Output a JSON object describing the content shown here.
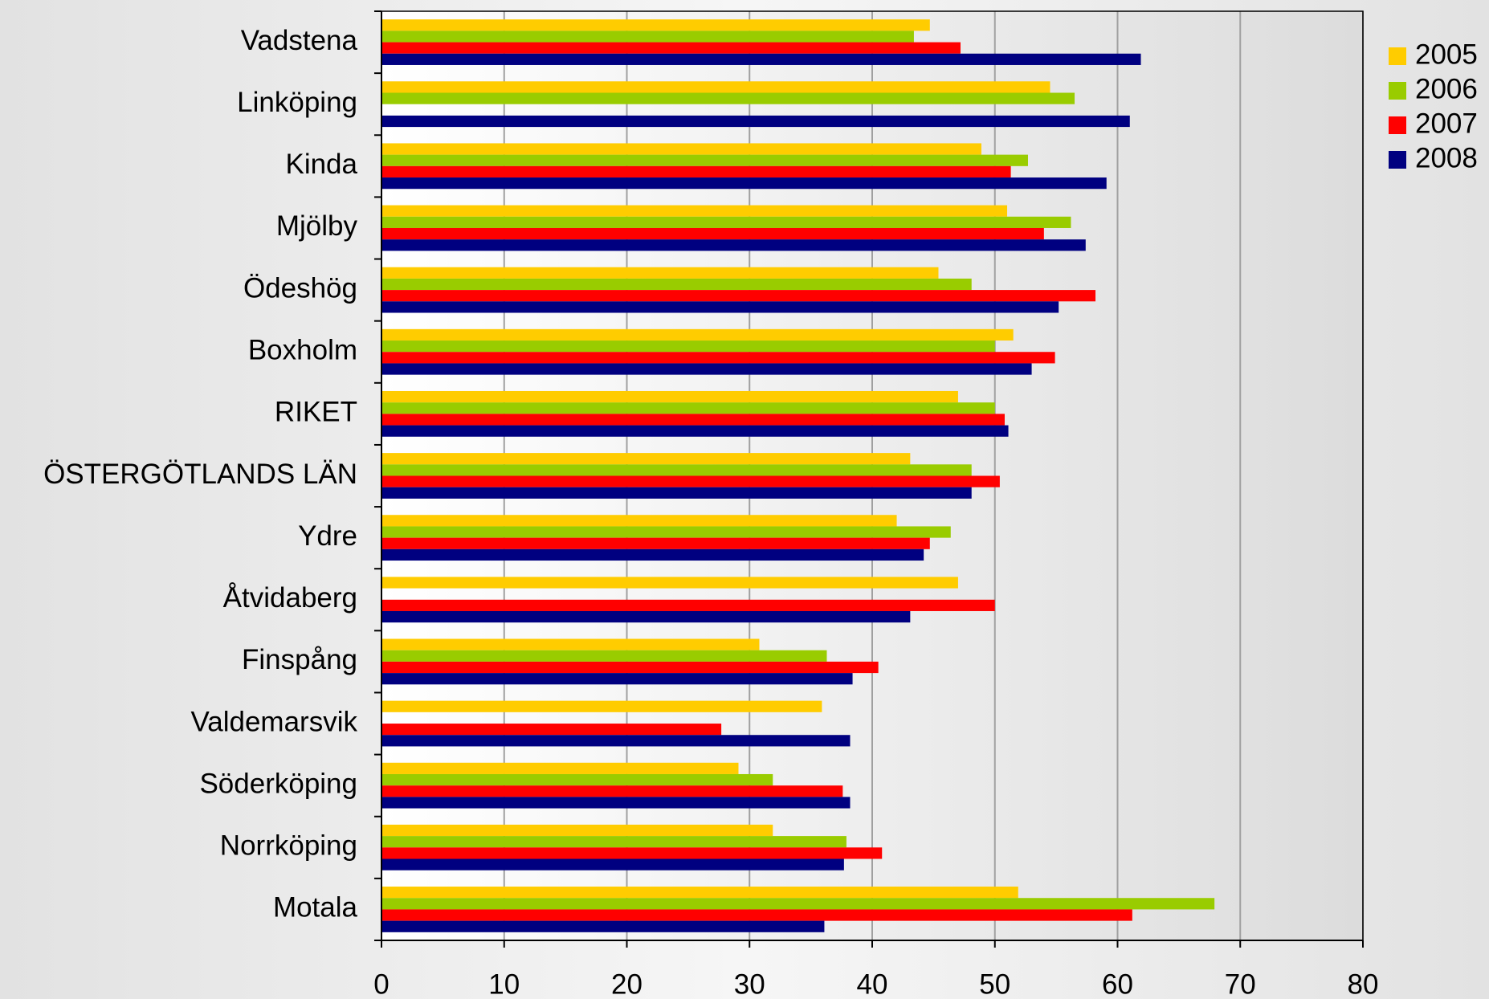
{
  "chart_data": {
    "type": "barh",
    "categories": [
      "Vadstena",
      "Linköping",
      "Kinda",
      "Mjölby",
      "Ödeshög",
      "Boxholm",
      "RIKET",
      "ÖSTERGÖTLANDS LÄN",
      "Ydre",
      "Åtvidaberg",
      "Finspång",
      "Valdemarsvik",
      "Söderköping",
      "Norrköping",
      "Motala"
    ],
    "series": [
      {
        "name": "2005",
        "color": "#ffcc00",
        "values": [
          44.7,
          54.5,
          48.9,
          51.0,
          45.4,
          51.5,
          47.0,
          43.1,
          42.0,
          47.0,
          30.8,
          35.9,
          29.1,
          31.9,
          51.9
        ]
      },
      {
        "name": "2006",
        "color": "#99cc00",
        "values": [
          43.4,
          56.5,
          52.7,
          56.2,
          48.1,
          50.0,
          50.0,
          48.1,
          46.4,
          null,
          36.3,
          null,
          31.9,
          37.9,
          67.9
        ]
      },
      {
        "name": "2007",
        "color": "#ff0000",
        "values": [
          47.2,
          null,
          51.3,
          54.0,
          58.2,
          54.9,
          50.8,
          50.4,
          44.7,
          50.0,
          40.5,
          27.7,
          37.6,
          40.8,
          61.2
        ]
      },
      {
        "name": "2008",
        "color": "#000080",
        "values": [
          61.9,
          61.0,
          59.1,
          57.4,
          55.2,
          53.0,
          51.1,
          48.1,
          44.2,
          43.1,
          38.4,
          38.2,
          38.2,
          37.7,
          36.1
        ]
      }
    ],
    "xlim": [
      0,
      80
    ],
    "xticks": [
      0,
      10,
      20,
      30,
      40,
      50,
      60,
      70,
      80
    ],
    "grid": true,
    "legend": "right"
  }
}
